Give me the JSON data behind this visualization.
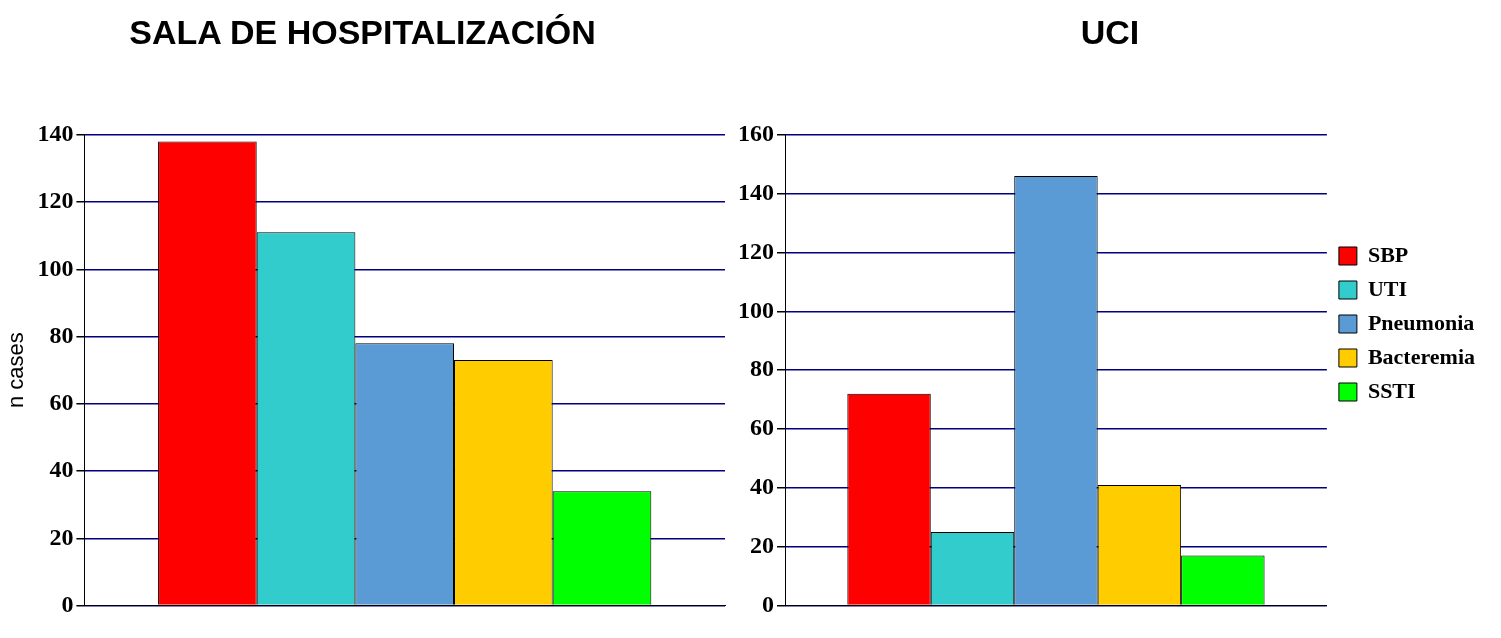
{
  "chart_data": [
    {
      "type": "bar",
      "title": "SALA DE HOSPITALIZACIÓN",
      "ylabel": "n cases",
      "categories": [
        null
      ],
      "series": [
        {
          "color": "#ff0000",
          "values": [
            138
          ]
        },
        {
          "color": "#33cccc",
          "values": [
            111
          ]
        },
        {
          "color": "#5b9bd5",
          "values": [
            78
          ]
        },
        {
          "color": "#ffcc00",
          "values": [
            73
          ]
        },
        {
          "color": "#00ff00",
          "values": [
            34
          ]
        }
      ],
      "ylim": [
        0,
        140
      ],
      "yticks": [
        0,
        20,
        40,
        60,
        80,
        100,
        120,
        140
      ],
      "grid": "y",
      "legend": false
    },
    {
      "type": "bar",
      "title": "UCI",
      "categories": [
        null
      ],
      "series": [
        {
          "name": "SBP",
          "color": "#ff0000",
          "values": [
            72
          ]
        },
        {
          "name": "UTI",
          "color": "#33cccc",
          "values": [
            25
          ]
        },
        {
          "name": "Pneumonia",
          "color": "#5b9bd5",
          "values": [
            146
          ]
        },
        {
          "name": "Bacteremia",
          "color": "#ffcc00",
          "values": [
            41
          ]
        },
        {
          "name": "SSTI",
          "color": "#00ff00",
          "values": [
            17
          ]
        }
      ],
      "ylim": [
        0,
        160
      ],
      "yticks": [
        0,
        20,
        40,
        60,
        80,
        100,
        120,
        140,
        160
      ],
      "grid": "y",
      "legend": "right"
    }
  ]
}
